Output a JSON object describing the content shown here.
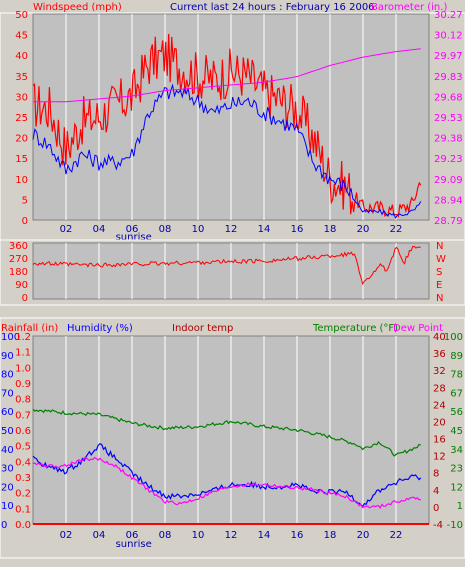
{
  "header": {
    "left_label": "Windspeed (mph)",
    "center_label": "Current last 24 hours : February 16 2006",
    "right_label": "Barometer (in.)"
  },
  "footer": {
    "left_label": "Rainfall (in)"
  },
  "colors": {
    "background": "#d4d0c8",
    "plot": "#c0c0c0",
    "grid": "#ffffff",
    "wind": "#ff0000",
    "wind_avg": "#0000ff",
    "barometer": "#ff00ff",
    "temperature": "#008000",
    "humidity": "#0000ff",
    "dewpoint": "#ff00ff",
    "rainfall": "#ff0000",
    "indoor": "#b00000"
  },
  "chart_data": [
    {
      "type": "line",
      "panel": "wind-barometer",
      "x_tick_labels": [
        "02",
        "04",
        "06",
        "08",
        "10",
        "12",
        "14",
        "16",
        "18",
        "20",
        "22"
      ],
      "x_note": "sunrise",
      "xlim": [
        0,
        24
      ],
      "left_axis": {
        "title": "Windspeed (mph)",
        "ticks": [
          "50",
          "45",
          "40",
          "35",
          "30",
          "25",
          "20",
          "15",
          "10",
          "5",
          "0"
        ],
        "ylim": [
          0,
          50
        ]
      },
      "right_axis": {
        "title": "Barometer (in.)",
        "ticks": [
          "30.27",
          "30.12",
          "29.97",
          "29.83",
          "29.68",
          "29.53",
          "29.38",
          "29.23",
          "29.09",
          "28.94",
          "28.79"
        ],
        "ylim": [
          28.79,
          30.27
        ]
      },
      "series": [
        {
          "name": "Windspeed (mph)",
          "axis": "left",
          "style": "gust",
          "color": "#ff0000",
          "x": [
            0,
            1,
            2,
            3,
            4,
            5,
            6,
            7,
            8,
            9,
            10,
            11,
            12,
            13,
            14,
            15,
            16,
            17,
            18,
            19,
            20,
            21,
            22,
            23,
            23.5
          ],
          "y": [
            28,
            27,
            17,
            24,
            25,
            28,
            30,
            38,
            40,
            37,
            35,
            34,
            36,
            35,
            31,
            29,
            27,
            20,
            10,
            8,
            3,
            3,
            2,
            4,
            10
          ]
        },
        {
          "name": "",
          "axis": "left",
          "color": "#0000ff",
          "x": [
            0,
            1,
            2,
            3,
            4,
            5,
            6,
            7,
            8,
            9,
            10,
            11,
            12,
            13,
            14,
            15,
            16,
            17,
            18,
            19,
            20,
            21,
            22,
            23,
            23.5
          ],
          "y": [
            21,
            18,
            12,
            16,
            14,
            14,
            16,
            26,
            31,
            31,
            29,
            26,
            28,
            29,
            26,
            24,
            22,
            14,
            10,
            8,
            2,
            2,
            1,
            2,
            4
          ]
        },
        {
          "name": "Barometer (in.)",
          "axis": "right",
          "color": "#ff00ff",
          "x": [
            0,
            2,
            4,
            6,
            8,
            10,
            12,
            14,
            16,
            18,
            20,
            22,
            23.5
          ],
          "y": [
            29.64,
            29.64,
            29.66,
            29.68,
            29.72,
            29.74,
            29.76,
            29.78,
            29.82,
            29.9,
            29.96,
            30.0,
            30.02
          ]
        }
      ]
    },
    {
      "type": "line",
      "panel": "wind-direction",
      "xlim": [
        0,
        24
      ],
      "left_axis": {
        "ticks": [
          "360",
          "270",
          "180",
          "90",
          "0"
        ],
        "ylim": [
          0,
          360
        ]
      },
      "right_axis": {
        "ticks": [
          "N",
          "W",
          "S",
          "E",
          "N"
        ]
      },
      "series": [
        {
          "name": "",
          "color": "#ff0000",
          "style": "direction",
          "x": [
            0,
            2,
            4,
            6,
            8,
            10,
            12,
            14,
            16,
            18,
            19.5,
            20,
            21,
            21.5,
            22,
            22.5,
            23,
            23.5
          ],
          "y": [
            235,
            225,
            220,
            228,
            232,
            240,
            245,
            250,
            265,
            285,
            300,
            90,
            220,
            180,
            340,
            240,
            350,
            340
          ]
        }
      ]
    },
    {
      "type": "line",
      "panel": "temperature-humidity",
      "labels": {
        "rainfall": "Rainfall (in)",
        "humidity": "Humidity (%)",
        "indoor": "Indoor temp",
        "temperature": "Temperature (°F)",
        "dewpoint": "Dew Point"
      },
      "x_tick_labels": [
        "02",
        "04",
        "06",
        "08",
        "10",
        "12",
        "14",
        "16",
        "18",
        "20",
        "22"
      ],
      "x_note": "sunrise",
      "xlim": [
        0,
        24
      ],
      "axes": {
        "rainfall": {
          "ticks": [
            "1.2",
            "1.1",
            "1.0",
            "0.9",
            "0.8",
            "0.7",
            "0.6",
            "0.5",
            "0.4",
            "0.3",
            "0.2",
            "0.1",
            "0.0"
          ],
          "ylim": [
            0,
            1.2
          ]
        },
        "humidity": {
          "ticks": [
            "100",
            "90",
            "80",
            "70",
            "60",
            "50",
            "40",
            "30",
            "20",
            "10",
            "0"
          ],
          "ylim": [
            0,
            100
          ]
        },
        "temperature_c": {
          "ticks": [
            "40",
            "36",
            "32",
            "28",
            "24",
            "20",
            "16",
            "12",
            "8",
            "4",
            "0",
            "-4"
          ]
        },
        "temperature_f": {
          "ticks": [
            "100",
            "89",
            "78",
            "67",
            "56",
            "45",
            "34",
            "23",
            "12",
            "1",
            "-10"
          ],
          "ylim": [
            -10,
            100
          ]
        }
      },
      "series": [
        {
          "name": "Temperature (°F)",
          "axis": "temperature_f",
          "color": "#008000",
          "x": [
            0,
            2,
            4,
            6,
            8,
            10,
            12,
            14,
            16,
            18,
            19.5,
            20,
            21,
            22,
            23,
            23.5
          ],
          "y": [
            57,
            55,
            54,
            49,
            46,
            47,
            50,
            47,
            45,
            41,
            37,
            34,
            38,
            30,
            34,
            36
          ]
        },
        {
          "name": "Humidity (%)",
          "axis": "humidity",
          "color": "#0000ff",
          "x": [
            0,
            1,
            2,
            3,
            4,
            5,
            6,
            7,
            8,
            9,
            10,
            11,
            12,
            13,
            14,
            15,
            16,
            17,
            18,
            19,
            20,
            21,
            22,
            23,
            23.5
          ],
          "y": [
            35,
            30,
            28,
            34,
            42,
            35,
            27,
            20,
            15,
            15,
            16,
            18,
            21,
            21,
            20,
            20,
            21,
            17,
            17,
            17,
            10,
            18,
            22,
            25,
            25
          ]
        },
        {
          "name": "Dew Point",
          "axis": "temperature_f",
          "color": "#ff00ff",
          "x": [
            0,
            1,
            2,
            3,
            4,
            5,
            6,
            7,
            8,
            9,
            10,
            11,
            12,
            13,
            14,
            15,
            16,
            17,
            18,
            19,
            20,
            21,
            22,
            23,
            23.5
          ],
          "y": [
            26,
            24,
            24,
            28,
            28,
            24,
            17,
            10,
            3,
            2,
            5,
            9,
            12,
            13,
            13,
            12,
            11,
            10,
            8,
            6,
            0,
            0,
            3,
            5,
            5
          ]
        },
        {
          "name": "Rainfall (in)",
          "axis": "rainfall",
          "color": "#ff0000",
          "x": [
            0,
            24
          ],
          "y": [
            0,
            0
          ]
        }
      ]
    }
  ]
}
